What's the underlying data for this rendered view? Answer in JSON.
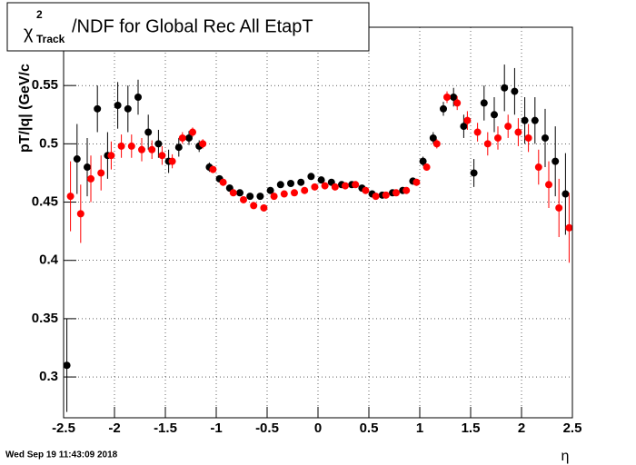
{
  "chart_data": {
    "type": "scatter",
    "title": {
      "symbol": "χ",
      "sup": "2",
      "sub": "Track",
      "text": "/NDF for Global Rec All EtapT"
    },
    "y_label": "pT/|q| (GeV/c",
    "x_label": "η",
    "timestamp": "Wed Sep 19 11:43:09 2018",
    "x": [
      -2.45,
      -2.35,
      -2.25,
      -2.15,
      -2.05,
      -1.95,
      -1.85,
      -1.75,
      -1.65,
      -1.55,
      -1.45,
      -1.35,
      -1.25,
      -1.15,
      -1.05,
      -0.95,
      -0.85,
      -0.75,
      -0.65,
      -0.55,
      -0.45,
      -0.35,
      -0.25,
      -0.15,
      -0.05,
      0.05,
      0.15,
      0.25,
      0.35,
      0.45,
      0.55,
      0.65,
      0.75,
      0.85,
      0.95,
      1.05,
      1.15,
      1.25,
      1.35,
      1.45,
      1.55,
      1.65,
      1.75,
      1.85,
      1.95,
      2.05,
      2.15,
      2.25,
      2.35,
      2.45
    ],
    "series": [
      {
        "name": "black",
        "color": "#000000",
        "values": [
          0.31,
          0.487,
          0.48,
          0.53,
          0.49,
          0.533,
          0.53,
          0.54,
          0.51,
          0.5,
          0.485,
          0.497,
          0.505,
          0.498,
          0.48,
          0.47,
          0.462,
          0.458,
          0.455,
          0.455,
          0.46,
          0.465,
          0.466,
          0.467,
          0.472,
          0.469,
          0.467,
          0.465,
          0.465,
          0.462,
          0.457,
          0.456,
          0.458,
          0.46,
          0.468,
          0.485,
          0.505,
          0.53,
          0.54,
          0.515,
          0.475,
          0.535,
          0.525,
          0.548,
          0.545,
          0.52,
          0.52,
          0.505,
          0.485,
          0.457
        ],
        "errors": [
          0.04,
          0.03,
          0.025,
          0.02,
          0.02,
          0.02,
          0.02,
          0.015,
          0.015,
          0.012,
          0.01,
          0.008,
          0.006,
          0.005,
          0.004,
          0.003,
          0.003,
          0.002,
          0.002,
          0.002,
          0.002,
          0.002,
          0.002,
          0.002,
          0.002,
          0.002,
          0.002,
          0.002,
          0.002,
          0.002,
          0.002,
          0.002,
          0.002,
          0.003,
          0.003,
          0.004,
          0.005,
          0.006,
          0.008,
          0.01,
          0.012,
          0.015,
          0.015,
          0.02,
          0.02,
          0.02,
          0.02,
          0.025,
          0.03,
          0.035
        ]
      },
      {
        "name": "red",
        "color": "#ff0000",
        "values": [
          0.455,
          0.44,
          0.47,
          0.475,
          0.49,
          0.498,
          0.498,
          0.495,
          0.495,
          0.49,
          0.485,
          0.505,
          0.51,
          0.5,
          0.478,
          0.467,
          0.458,
          0.452,
          0.447,
          0.445,
          0.455,
          0.457,
          0.458,
          0.46,
          0.463,
          0.464,
          0.463,
          0.464,
          0.465,
          0.46,
          0.455,
          0.456,
          0.458,
          0.46,
          0.467,
          0.48,
          0.5,
          0.54,
          0.535,
          0.52,
          0.51,
          0.5,
          0.505,
          0.515,
          0.51,
          0.505,
          0.48,
          0.465,
          0.445,
          0.428
        ],
        "errors": [
          0.03,
          0.025,
          0.02,
          0.015,
          0.012,
          0.01,
          0.01,
          0.01,
          0.008,
          0.008,
          0.006,
          0.005,
          0.004,
          0.004,
          0.003,
          0.003,
          0.002,
          0.002,
          0.002,
          0.002,
          0.002,
          0.002,
          0.002,
          0.002,
          0.002,
          0.002,
          0.002,
          0.002,
          0.002,
          0.002,
          0.002,
          0.002,
          0.002,
          0.002,
          0.003,
          0.003,
          0.004,
          0.005,
          0.006,
          0.008,
          0.008,
          0.01,
          0.01,
          0.01,
          0.012,
          0.012,
          0.015,
          0.02,
          0.025,
          0.03
        ]
      }
    ],
    "xlim": [
      -2.5,
      2.5
    ],
    "ylim": [
      0.265,
      0.6
    ],
    "xticks": [
      -2.5,
      -2,
      -1.5,
      -1,
      -0.5,
      0,
      0.5,
      1,
      1.5,
      2,
      2.5
    ],
    "yticks": [
      0.3,
      0.35,
      0.4,
      0.45,
      0.5,
      0.55
    ],
    "grid": true
  }
}
